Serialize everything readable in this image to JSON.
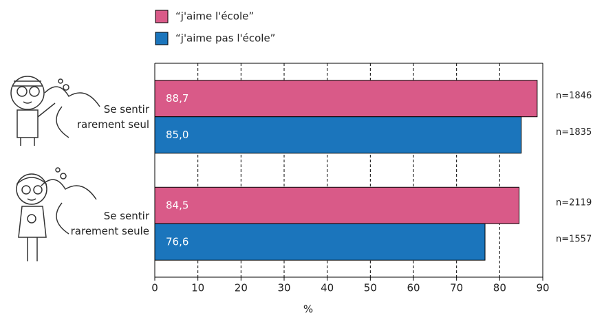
{
  "chart_data": {
    "type": "barh",
    "categories": [
      "Se sentir rarement seul",
      "Se sentir rarement seule"
    ],
    "series": [
      {
        "name": "“j'aime l'école”",
        "color": "#d95a88",
        "values": [
          88.7,
          84.5
        ],
        "value_labels": [
          "88,7",
          "84,5"
        ],
        "n_labels": [
          "n=1846",
          "n=2119"
        ]
      },
      {
        "name": "“j'aime pas l'école”",
        "color": "#1b75bc",
        "values": [
          85.0,
          76.6
        ],
        "value_labels": [
          "85,0",
          "76,6"
        ],
        "n_labels": [
          "n=1835",
          "n=1557"
        ]
      }
    ],
    "xlabel": "%",
    "xlim": [
      0,
      90
    ],
    "xticks": [
      0,
      10,
      20,
      30,
      40,
      50,
      60,
      70,
      80,
      90
    ],
    "grid": true
  }
}
